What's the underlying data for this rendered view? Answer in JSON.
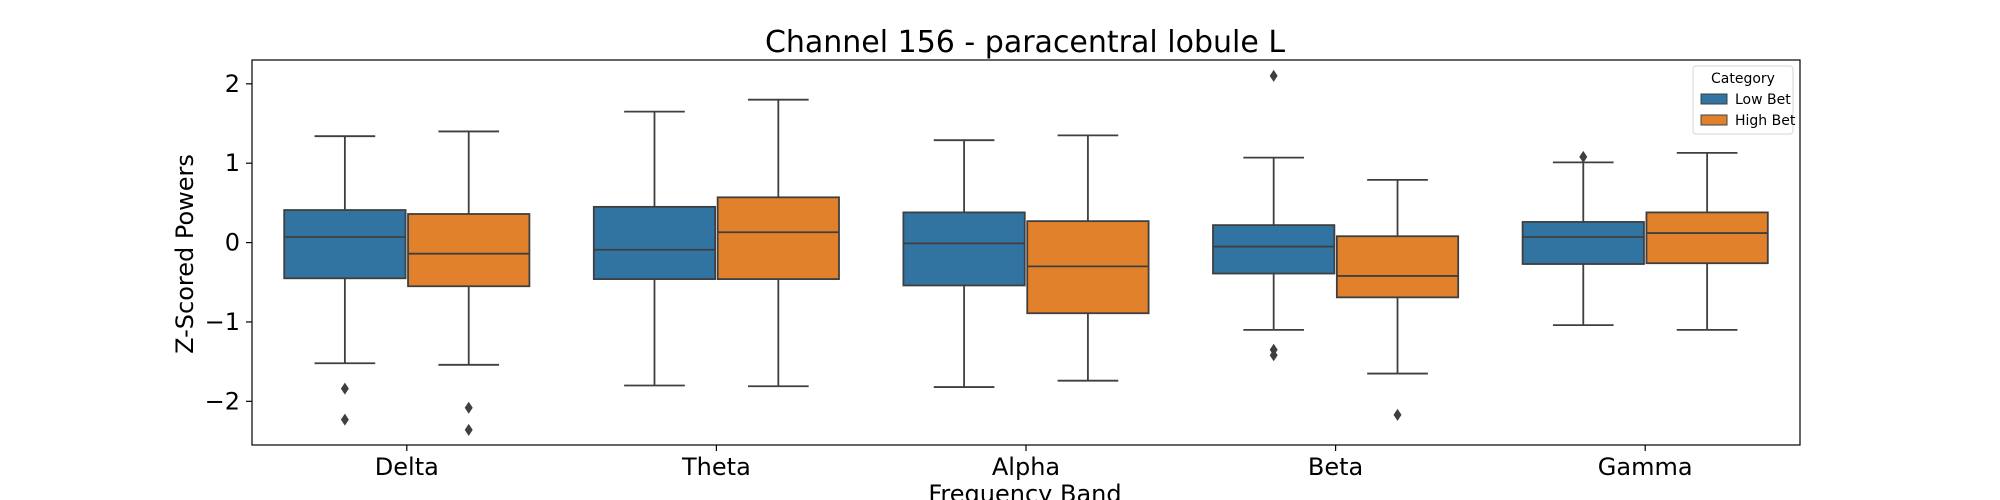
{
  "chart_data": {
    "type": "box",
    "title": "Channel 156 - paracentral lobule L",
    "xlabel": "Frequency Band",
    "ylabel": "Z-Scored Powers",
    "categories": [
      "Delta",
      "Theta",
      "Alpha",
      "Beta",
      "Gamma"
    ],
    "ylim": [
      -2.55,
      2.3
    ],
    "yticks": [
      -2,
      -1,
      0,
      1,
      2
    ],
    "ytick_labels": [
      "−2",
      "−1",
      "0",
      "1",
      "2"
    ],
    "grid": false,
    "legend": {
      "title": "Category",
      "position": "top-right"
    },
    "series": [
      {
        "name": "Low Bet",
        "color": "#3274a1",
        "boxes": [
          {
            "q1": -0.45,
            "median": 0.07,
            "q3": 0.41,
            "whisker_low": -1.52,
            "whisker_high": 1.34,
            "outliers": [
              -1.84,
              -2.23
            ]
          },
          {
            "q1": -0.46,
            "median": -0.09,
            "q3": 0.45,
            "whisker_low": -1.8,
            "whisker_high": 1.65,
            "outliers": []
          },
          {
            "q1": -0.54,
            "median": -0.01,
            "q3": 0.38,
            "whisker_low": -1.82,
            "whisker_high": 1.29,
            "outliers": []
          },
          {
            "q1": -0.39,
            "median": -0.05,
            "q3": 0.22,
            "whisker_low": -1.1,
            "whisker_high": 1.07,
            "outliers": [
              2.1,
              -1.35,
              -1.42
            ]
          },
          {
            "q1": -0.27,
            "median": 0.07,
            "q3": 0.26,
            "whisker_low": -1.04,
            "whisker_high": 1.01,
            "outliers": [
              1.08
            ]
          }
        ]
      },
      {
        "name": "High Bet",
        "color": "#e1812c",
        "boxes": [
          {
            "q1": -0.55,
            "median": -0.14,
            "q3": 0.36,
            "whisker_low": -1.54,
            "whisker_high": 1.4,
            "outliers": [
              -2.08,
              -2.36
            ]
          },
          {
            "q1": -0.46,
            "median": 0.13,
            "q3": 0.57,
            "whisker_low": -1.81,
            "whisker_high": 1.8,
            "outliers": []
          },
          {
            "q1": -0.89,
            "median": -0.3,
            "q3": 0.27,
            "whisker_low": -1.74,
            "whisker_high": 1.35,
            "outliers": []
          },
          {
            "q1": -0.69,
            "median": -0.42,
            "q3": 0.08,
            "whisker_low": -1.65,
            "whisker_high": 0.79,
            "outliers": [
              -2.17
            ]
          },
          {
            "q1": -0.26,
            "median": 0.12,
            "q3": 0.38,
            "whisker_low": -1.1,
            "whisker_high": 1.13,
            "outliers": []
          }
        ]
      }
    ]
  }
}
